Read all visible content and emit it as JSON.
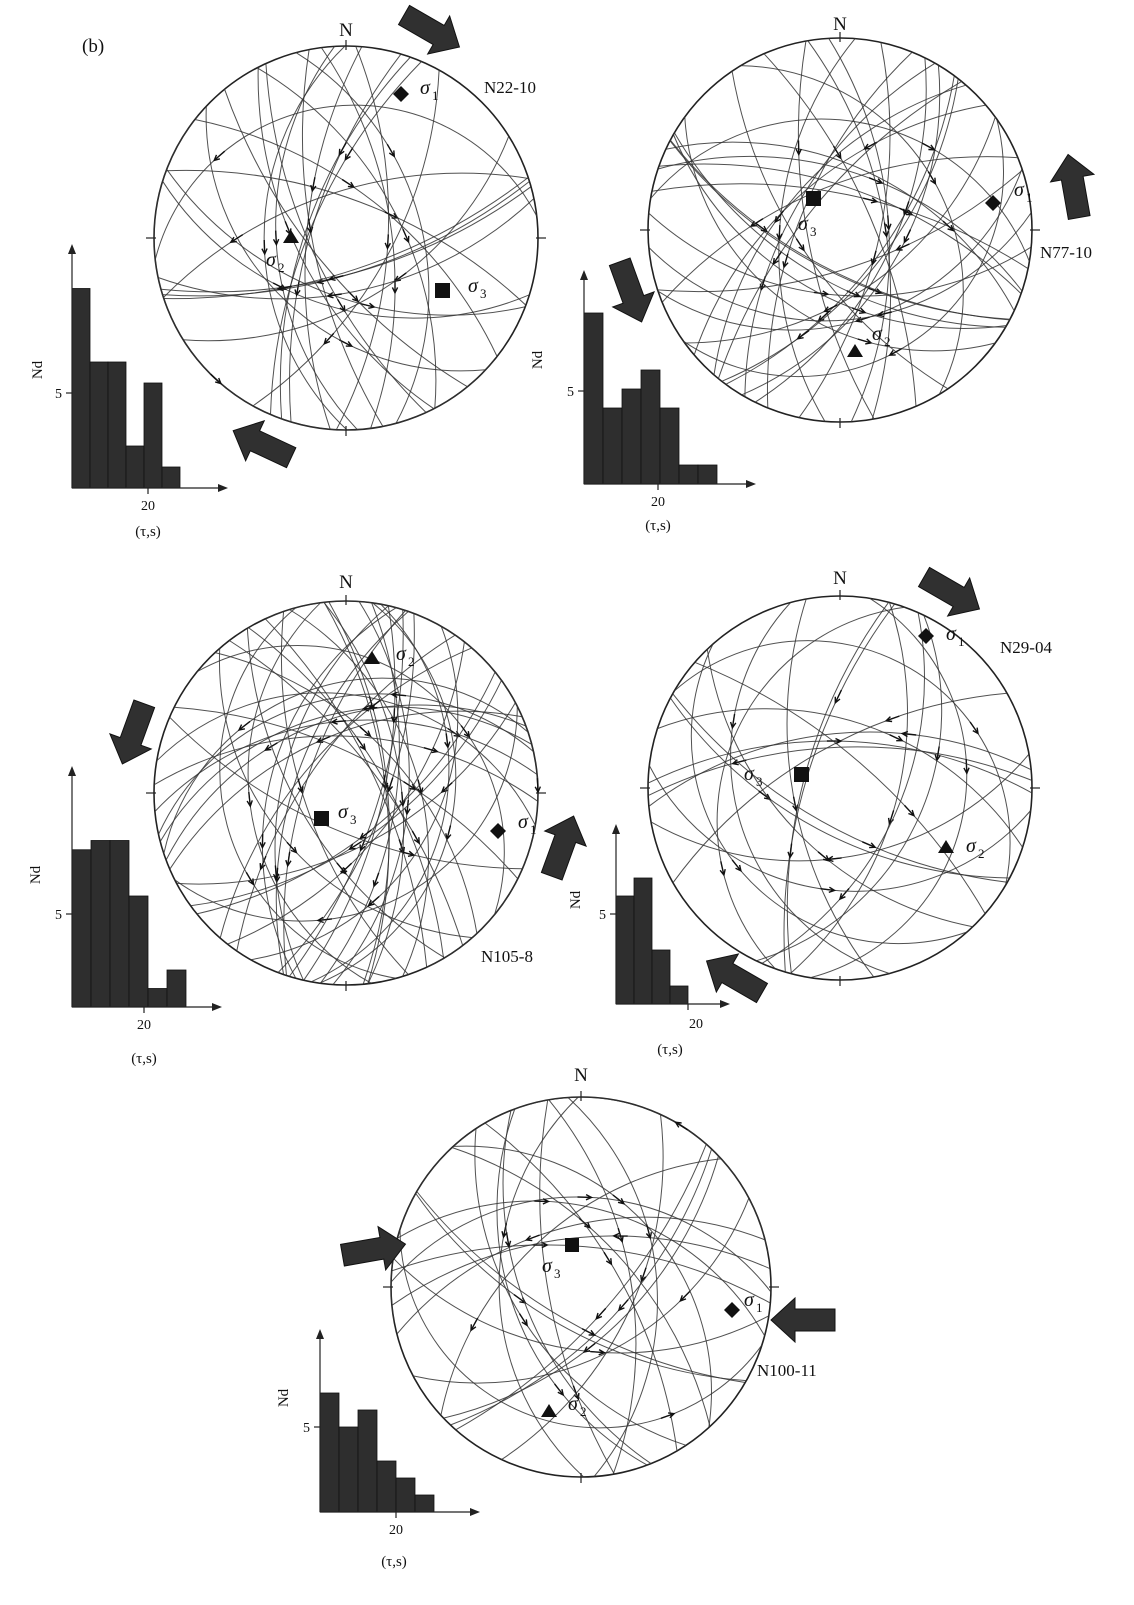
{
  "figure": {
    "panel_label": "(b)",
    "north_label": "N",
    "sigma_symbol": "σ",
    "sigma_subscripts": [
      "1",
      "2",
      "3"
    ],
    "histogram_y_label": "Nd",
    "histogram_x_label": "(τ,s)",
    "histogram_y_tick": "5",
    "histogram_x_tick": "20",
    "ink_color": "#2e2e2e"
  },
  "sites": [
    {
      "name": "N22-10",
      "sigma1_marker": "diamond",
      "sigma2_marker": "triangle",
      "sigma3_marker": "square",
      "plane_count": 28,
      "seed": 11,
      "histogram": {
        "bars": [
          9.5,
          6,
          6,
          2,
          5,
          1
        ]
      }
    },
    {
      "name": "N77-10",
      "sigma1_marker": "diamond",
      "sigma2_marker": "triangle",
      "sigma3_marker": "square",
      "plane_count": 34,
      "seed": 23,
      "histogram": {
        "bars": [
          9,
          4,
          5,
          6,
          4,
          1,
          1
        ]
      }
    },
    {
      "name": "N105-8",
      "sigma1_marker": "diamond",
      "sigma2_marker": "triangle",
      "sigma3_marker": "square",
      "plane_count": 44,
      "seed": 37,
      "histogram": {
        "bars": [
          8.5,
          9,
          9,
          6,
          1,
          2
        ]
      }
    },
    {
      "name": "N29-04",
      "sigma1_marker": "diamond",
      "sigma2_marker": "triangle",
      "sigma3_marker": "square",
      "plane_count": 22,
      "seed": 53,
      "histogram": {
        "bars": [
          6,
          7,
          3,
          1
        ]
      }
    },
    {
      "name": "N100-11",
      "sigma1_marker": "diamond",
      "sigma2_marker": "triangle",
      "sigma3_marker": "square",
      "plane_count": 26,
      "seed": 71,
      "histogram": {
        "bars": [
          7,
          5,
          6,
          3,
          2,
          1
        ]
      }
    }
  ]
}
